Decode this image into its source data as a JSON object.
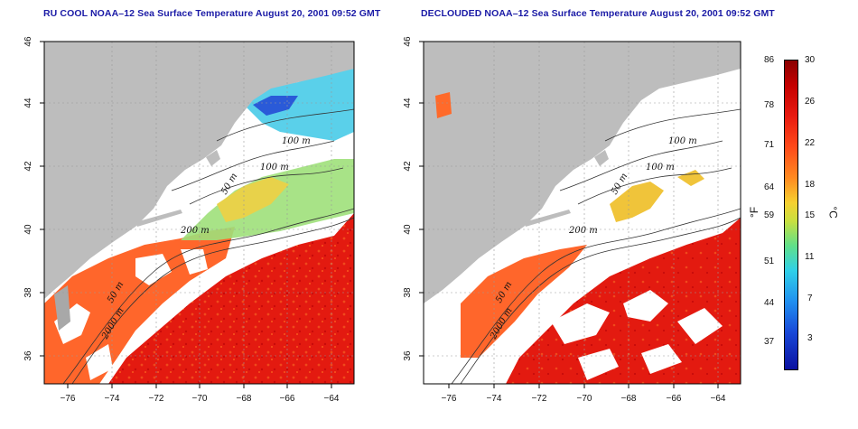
{
  "panels": [
    {
      "id": "left",
      "title": "RU COOL NOAA–12 Sea Surface Temperature August 20, 2001 09:52 GMT",
      "x_ticks": [
        "−76",
        "−74",
        "−72",
        "−70",
        "−68",
        "−66",
        "−64"
      ],
      "y_ticks": [
        "46",
        "44",
        "42",
        "40",
        "38",
        "36"
      ],
      "contour_labels": [
        "100 m",
        "100 m",
        "50 m",
        "200 m",
        "50 m",
        "2000 m"
      ],
      "mode": "cloudy"
    },
    {
      "id": "right",
      "title": "DECLOUDED NOAA–12 Sea Surface Temperature August 20, 2001 09:52 GMT",
      "x_ticks": [
        "−76",
        "−74",
        "−72",
        "−70",
        "−68",
        "−66",
        "−64"
      ],
      "y_ticks": [
        "46",
        "44",
        "42",
        "40",
        "38",
        "36"
      ],
      "contour_labels": [
        "100 m",
        "100 m",
        "50 m",
        "200 m",
        "50 m",
        "2000 m"
      ],
      "mode": "declouded"
    }
  ],
  "colorbar": {
    "fahrenheit_labels": [
      "86",
      "78",
      "71",
      "64",
      "59",
      "51",
      "44",
      "37"
    ],
    "celsius_labels": [
      "30",
      "26",
      "22",
      "18",
      "15",
      "11",
      "7",
      "3"
    ],
    "fahrenheit_unit": "°F",
    "celsius_unit": "°C"
  },
  "colors": {
    "land": "#bdbdbd",
    "shelf_water_cloud": "#ffffff",
    "warm": "#e41b12",
    "hot": "#d40c0c",
    "orange": "#ff5a1e",
    "yellow": "#f5c842",
    "green": "#86e08a",
    "cyan": "#3fd4f0",
    "blue": "#1a44d6",
    "title_color": "#1a1aa6"
  }
}
